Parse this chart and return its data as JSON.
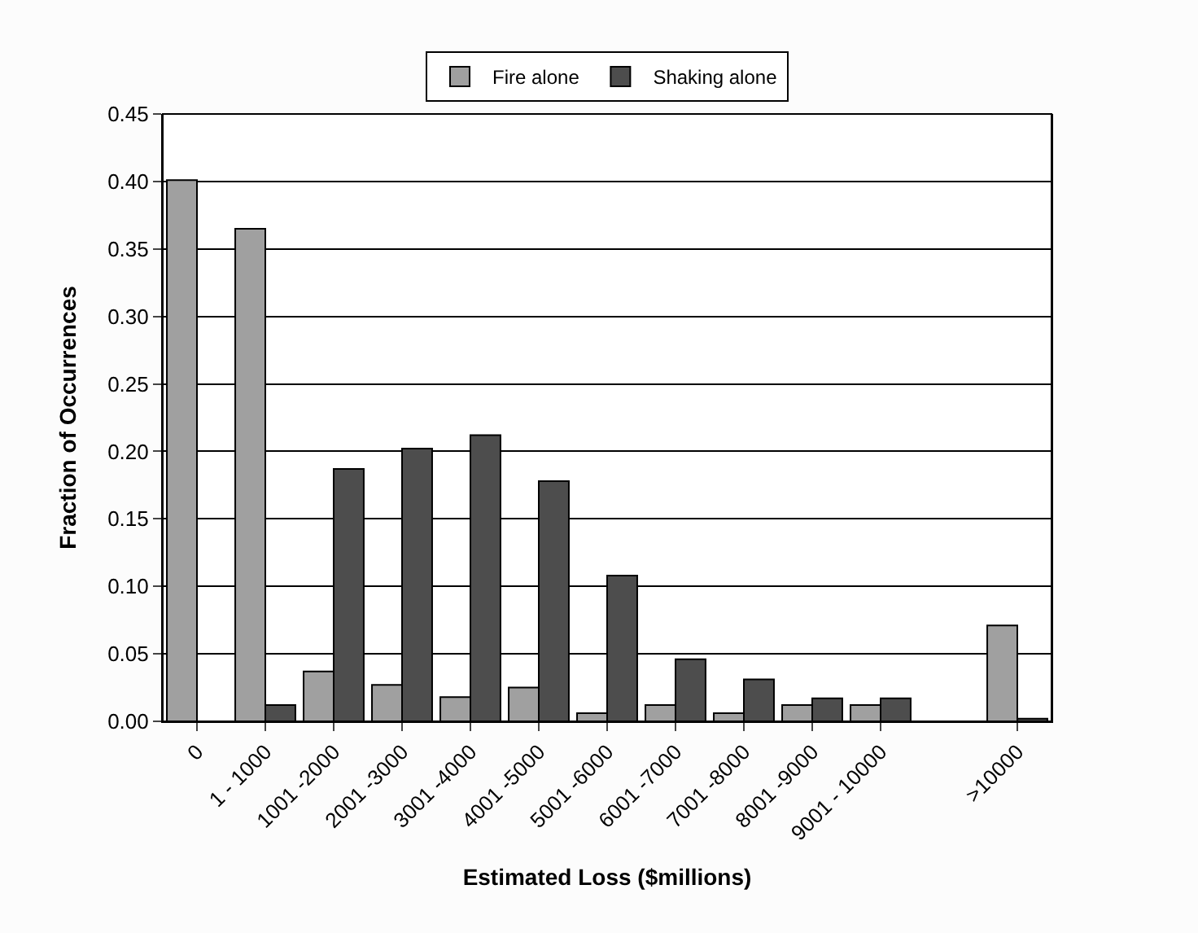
{
  "chart_data": {
    "type": "bar",
    "xlabel": "Estimated Loss ($millions)",
    "ylabel": "Fraction of Occurrences",
    "categories": [
      "0",
      "1 - 1000",
      "1001 -2000",
      "2001 -3000",
      "3001 -4000",
      "4001 -5000",
      "5001 -6000",
      "6001 -7000",
      "7001 -8000",
      "8001 -9000",
      "9001 - 10000",
      null,
      ">10000"
    ],
    "series": [
      {
        "name": "Fire alone",
        "color": "#a0a0a0",
        "values": [
          0.401,
          0.365,
          0.037,
          0.027,
          0.018,
          0.025,
          0.006,
          0.012,
          0.006,
          0.012,
          0.012,
          null,
          0.071
        ]
      },
      {
        "name": "Shaking alone",
        "color": "#4d4d4d",
        "values": [
          null,
          0.012,
          0.187,
          0.202,
          0.212,
          0.178,
          0.108,
          0.046,
          0.031,
          0.017,
          0.017,
          null,
          0.002
        ]
      }
    ],
    "ylim": [
      0,
      0.45
    ],
    "yticks": [
      {
        "value": 0,
        "label": "0.00"
      },
      {
        "value": 0.05,
        "label": "0.05"
      },
      {
        "value": 0.1,
        "label": "0.10"
      },
      {
        "value": 0.15,
        "label": "0.15"
      },
      {
        "value": 0.2,
        "label": "0.20"
      },
      {
        "value": 0.25,
        "label": "0.25"
      },
      {
        "value": 0.3,
        "label": "0.30"
      },
      {
        "value": 0.35,
        "label": "0.35"
      },
      {
        "value": 0.4,
        "label": "0.40"
      },
      {
        "value": 0.45,
        "label": "0.45"
      }
    ],
    "grid": "y",
    "legend": "top"
  }
}
